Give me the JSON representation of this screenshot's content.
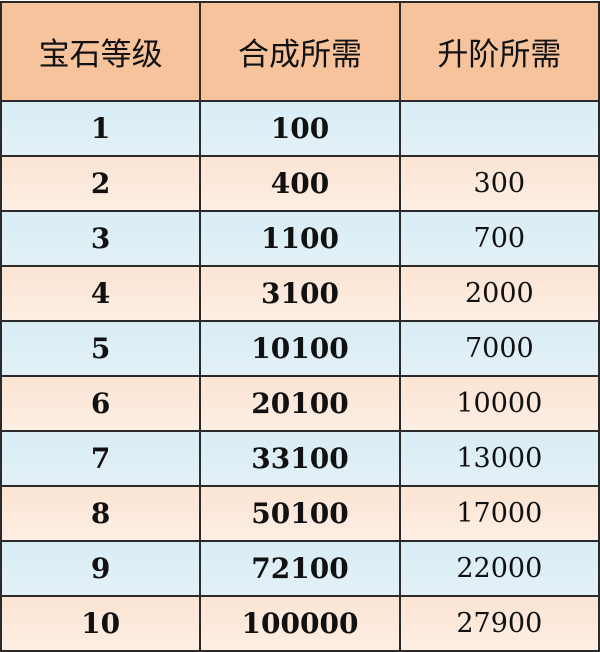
{
  "table": {
    "headers": [
      "宝石等级",
      "合成所需",
      "升阶所需"
    ],
    "rows": [
      {
        "level": "1",
        "synthesis": "100",
        "upgrade": ""
      },
      {
        "level": "2",
        "synthesis": "400",
        "upgrade": "300"
      },
      {
        "level": "3",
        "synthesis": "1100",
        "upgrade": "700"
      },
      {
        "level": "4",
        "synthesis": "3100",
        "upgrade": "2000"
      },
      {
        "level": "5",
        "synthesis": "10100",
        "upgrade": "7000"
      },
      {
        "level": "6",
        "synthesis": "20100",
        "upgrade": "10000"
      },
      {
        "level": "7",
        "synthesis": "33100",
        "upgrade": "13000"
      },
      {
        "level": "8",
        "synthesis": "50100",
        "upgrade": "17000"
      },
      {
        "level": "9",
        "synthesis": "72100",
        "upgrade": "22000"
      },
      {
        "level": "10",
        "synthesis": "100000",
        "upgrade": "27900"
      }
    ]
  },
  "colors": {
    "header": "#f6c39c",
    "row_odd": "#ddeef5",
    "row_even": "#fce8da",
    "border": "#2a2a2a"
  }
}
